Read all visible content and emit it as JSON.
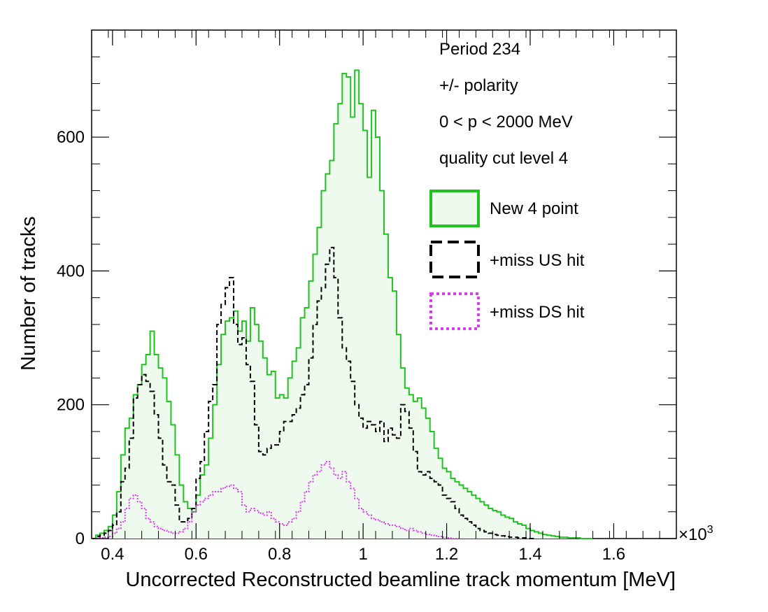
{
  "chart_data": {
    "type": "histogram-step",
    "xlabel": "Uncorrected Reconstructed beamline track momentum [MeV]",
    "ylabel": "Number of tracks",
    "x_multiplier": "×10",
    "x_multiplier_exponent": "3",
    "xlim": [
      0.35,
      1.75
    ],
    "ylim": [
      0,
      760
    ],
    "bin_width": 0.01,
    "x_ticks": [
      {
        "value": 0.4,
        "label": "0.4"
      },
      {
        "value": 0.6,
        "label": "0.6"
      },
      {
        "value": 0.8,
        "label": "0.8"
      },
      {
        "value": 1.0,
        "label": "1"
      },
      {
        "value": 1.2,
        "label": "1.2"
      },
      {
        "value": 1.4,
        "label": "1.4"
      },
      {
        "value": 1.6,
        "label": "1.6"
      }
    ],
    "y_ticks": [
      {
        "value": 0,
        "label": "0"
      },
      {
        "value": 200,
        "label": "200"
      },
      {
        "value": 400,
        "label": "400"
      },
      {
        "value": 600,
        "label": "600"
      }
    ],
    "annotations": [
      "Period 234",
      "+/- polarity",
      "0 < p < 2000 MeV",
      "quality cut level 4"
    ],
    "legend_position": "top-right",
    "series": [
      {
        "name": "New 4 point",
        "color": "#1fc21f",
        "fill": "#effaef",
        "style": "solid",
        "x_start": 0.35,
        "values": [
          0,
          5,
          8,
          12,
          18,
          35,
          70,
          125,
          165,
          180,
          215,
          230,
          260,
          275,
          310,
          275,
          255,
          240,
          205,
          170,
          125,
          80,
          55,
          45,
          40,
          65,
          95,
          110,
          150,
          200,
          260,
          305,
          325,
          330,
          340,
          310,
          325,
          295,
          345,
          320,
          295,
          270,
          245,
          250,
          210,
          215,
          210,
          240,
          265,
          285,
          330,
          345,
          385,
          425,
          465,
          520,
          545,
          565,
          620,
          650,
          695,
          690,
          630,
          700,
          650,
          610,
          540,
          640,
          600,
          520,
          455,
          390,
          370,
          305,
          255,
          225,
          215,
          205,
          210,
          195,
          180,
          160,
          135,
          120,
          105,
          100,
          90,
          85,
          80,
          75,
          70,
          65,
          60,
          55,
          50,
          45,
          42,
          40,
          35,
          32,
          30,
          25,
          22,
          20,
          15,
          12,
          10,
          8,
          6,
          5,
          4,
          3,
          2,
          2,
          1,
          1,
          1,
          0,
          0,
          0
        ]
      },
      {
        "name": "+miss US hit",
        "color": "#000000",
        "fill": "none",
        "style": "dashed",
        "x_start": 0.35,
        "values": [
          0,
          3,
          5,
          8,
          12,
          20,
          40,
          85,
          105,
          150,
          210,
          230,
          245,
          235,
          220,
          185,
          150,
          110,
          85,
          80,
          50,
          25,
          25,
          30,
          45,
          90,
          115,
          160,
          205,
          230,
          320,
          350,
          375,
          390,
          320,
          290,
          300,
          260,
          235,
          170,
          130,
          125,
          135,
          140,
          140,
          160,
          175,
          175,
          185,
          195,
          215,
          230,
          270,
          320,
          355,
          375,
          410,
          435,
          390,
          330,
          285,
          265,
          235,
          200,
          180,
          165,
          175,
          170,
          160,
          175,
          145,
          165,
          155,
          150,
          200,
          190,
          165,
          130,
          100,
          95,
          100,
          90,
          85,
          80,
          65,
          60,
          55,
          45,
          35,
          30,
          25,
          20,
          15,
          12,
          10,
          8,
          6,
          5,
          4,
          3,
          2,
          2,
          1,
          1,
          0,
          0
        ]
      },
      {
        "name": "+miss DS hit",
        "color": "#d63ee8",
        "fill": "none",
        "style": "dotted",
        "x_start": 0.35,
        "values": [
          0,
          0,
          1,
          2,
          3,
          8,
          15,
          25,
          45,
          60,
          65,
          55,
          45,
          30,
          25,
          18,
          15,
          12,
          10,
          8,
          8,
          10,
          15,
          25,
          40,
          50,
          55,
          60,
          65,
          70,
          70,
          75,
          78,
          80,
          75,
          70,
          50,
          40,
          45,
          42,
          38,
          35,
          40,
          30,
          25,
          22,
          20,
          25,
          30,
          40,
          55,
          70,
          85,
          95,
          100,
          110,
          115,
          105,
          95,
          90,
          100,
          85,
          75,
          60,
          45,
          40,
          35,
          30,
          28,
          25,
          22,
          20,
          20,
          18,
          15,
          12,
          15,
          12,
          10,
          8,
          6,
          5,
          4,
          3,
          2,
          1,
          0,
          0
        ]
      }
    ]
  }
}
